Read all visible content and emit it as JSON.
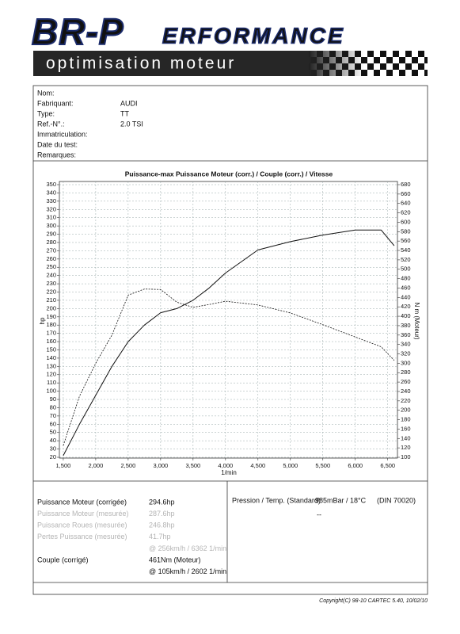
{
  "header": {
    "logo_main": "BR-P",
    "logo_rest": "ERFORMANCE",
    "tagline": "optimisation moteur"
  },
  "info": [
    {
      "label": "Nom:"
    },
    {
      "label": "Fabriquant:",
      "value": "AUDI"
    },
    {
      "label": "Type:",
      "value": "TT"
    },
    {
      "label": "Ref.-N°.:",
      "value": "2.0 TSI"
    },
    {
      "label": "Immatriculation:"
    },
    {
      "label": "Date du test:"
    },
    {
      "label": "Remarques:"
    }
  ],
  "chart_data": {
    "type": "line",
    "title": "Puissance-max Puissance Moteur (corr.) / Couple (corr.) / Vitesse",
    "x_label": "1/min",
    "y_label": "hp",
    "y2_label": "N m (Moteur)",
    "grid": true,
    "x": [
      1500,
      1750,
      2000,
      2250,
      2500,
      2750,
      3000,
      3250,
      3500,
      3750,
      4000,
      4500,
      5000,
      5500,
      6000,
      6400,
      6600
    ],
    "series": [
      {
        "name": "Puissance Moteur (corr.)",
        "color": "#111111",
        "dash": false,
        "axis": "y",
        "values": [
          22,
          60,
          95,
          130,
          160,
          180,
          195,
          200,
          210,
          225,
          243,
          271,
          281,
          289,
          295,
          295,
          276
        ]
      },
      {
        "name": "Couple (corr.)",
        "color": "#111111",
        "dash": true,
        "axis": "y2",
        "values": [
          125,
          230,
          300,
          360,
          445,
          458,
          457,
          430,
          419,
          425,
          432,
          424,
          407,
          382,
          356,
          335,
          306
        ]
      }
    ],
    "xlim": [
      1440,
      6650
    ],
    "xticks": [
      {
        "value": 1500,
        "label": "1,500"
      },
      {
        "value": 2000,
        "label": "2,000"
      },
      {
        "value": 2500,
        "label": "2,500"
      },
      {
        "value": 3000,
        "label": "3,000"
      },
      {
        "value": 3500,
        "label": "3,500"
      },
      {
        "value": 4000,
        "label": "4,000"
      },
      {
        "value": 4500,
        "label": "4,500"
      },
      {
        "value": 5000,
        "label": "5,000"
      },
      {
        "value": 5500,
        "label": "5,500"
      },
      {
        "value": 6000,
        "label": "6,000"
      },
      {
        "value": 6500,
        "label": "6,500"
      }
    ],
    "ylim": [
      20,
      350
    ],
    "yticks": [
      20,
      30,
      40,
      50,
      60,
      70,
      80,
      90,
      100,
      110,
      120,
      130,
      140,
      150,
      160,
      170,
      180,
      190,
      200,
      210,
      220,
      230,
      240,
      250,
      260,
      270,
      280,
      290,
      300,
      310,
      320,
      330,
      340,
      350
    ],
    "y2lim": [
      100,
      680
    ],
    "y2ticks": [
      100,
      120,
      140,
      160,
      180,
      200,
      220,
      240,
      260,
      280,
      300,
      320,
      340,
      360,
      380,
      400,
      420,
      440,
      460,
      480,
      500,
      520,
      540,
      560,
      580,
      600,
      620,
      640,
      660,
      680
    ]
  },
  "results": [
    {
      "label": "Puissance Moteur (corrigée)",
      "value": "294.6hp",
      "muted": false
    },
    {
      "label": "Puissance Moteur (mesurée)",
      "value": "287.6hp",
      "muted": true
    },
    {
      "label": "Puissance Roues (mesurée)",
      "value": "246.8hp",
      "muted": true
    },
    {
      "label": "Pertes Puissance (mesurée)",
      "value": "41.7hp",
      "muted": true
    },
    {
      "value": "@ 256km/h / 6362 1/min",
      "muted": true
    },
    {
      "label": "Couple (corrigé)",
      "value": "461Nm (Moteur)",
      "muted": false
    },
    {
      "value": "@ 105km/h / 2602 1/min",
      "muted": false
    }
  ],
  "pressure": {
    "label": "Pression / Temp. (Standard)",
    "value": "985mBar / 18°C",
    "norm": "(DIN 70020)",
    "extra": "--"
  },
  "footer": {
    "copyright": "Copyright(C) 98-10 CARTEC 5.40, 10/02/10"
  }
}
